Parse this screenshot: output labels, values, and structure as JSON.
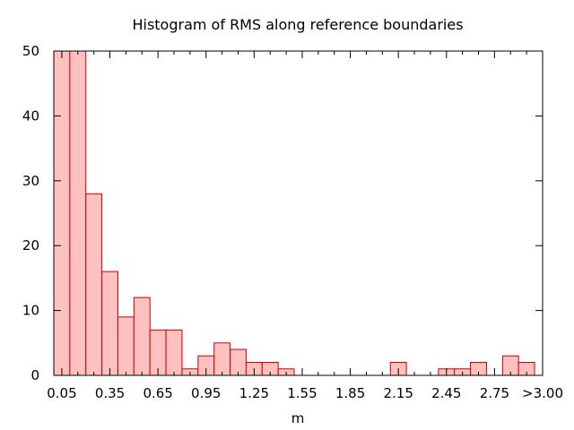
{
  "chart_data": {
    "type": "bar",
    "title": "Histogram of RMS along reference boundaries",
    "xlabel": "m",
    "ylabel": "",
    "x_tick_labels": [
      "0.05",
      "0.35",
      "0.65",
      "0.95",
      "1.25",
      "1.55",
      "1.85",
      "2.15",
      "2.45",
      "2.75",
      ">3.00"
    ],
    "y_tick_labels": [
      "0",
      "10",
      "20",
      "30",
      "40",
      "50"
    ],
    "ylim": [
      0,
      50
    ],
    "bin_width": 0.1,
    "bins": [
      {
        "x": 0.05,
        "value": 50
      },
      {
        "x": 0.15,
        "value": 50
      },
      {
        "x": 0.25,
        "value": 28
      },
      {
        "x": 0.35,
        "value": 16
      },
      {
        "x": 0.45,
        "value": 9
      },
      {
        "x": 0.55,
        "value": 12
      },
      {
        "x": 0.65,
        "value": 7
      },
      {
        "x": 0.75,
        "value": 7
      },
      {
        "x": 0.85,
        "value": 1
      },
      {
        "x": 0.95,
        "value": 3
      },
      {
        "x": 1.05,
        "value": 5
      },
      {
        "x": 1.15,
        "value": 4
      },
      {
        "x": 1.25,
        "value": 2
      },
      {
        "x": 1.35,
        "value": 2
      },
      {
        "x": 1.45,
        "value": 1
      },
      {
        "x": 2.15,
        "value": 2
      },
      {
        "x": 2.45,
        "value": 1
      },
      {
        "x": 2.55,
        "value": 1
      },
      {
        "x": 2.65,
        "value": 2
      },
      {
        "x": 2.85,
        "value": 3
      },
      {
        "x": 2.95,
        "value": 2
      }
    ],
    "grid": false,
    "legend": "none",
    "bar_fill": "#ffc0c0",
    "bar_stroke": "#cc0000"
  }
}
